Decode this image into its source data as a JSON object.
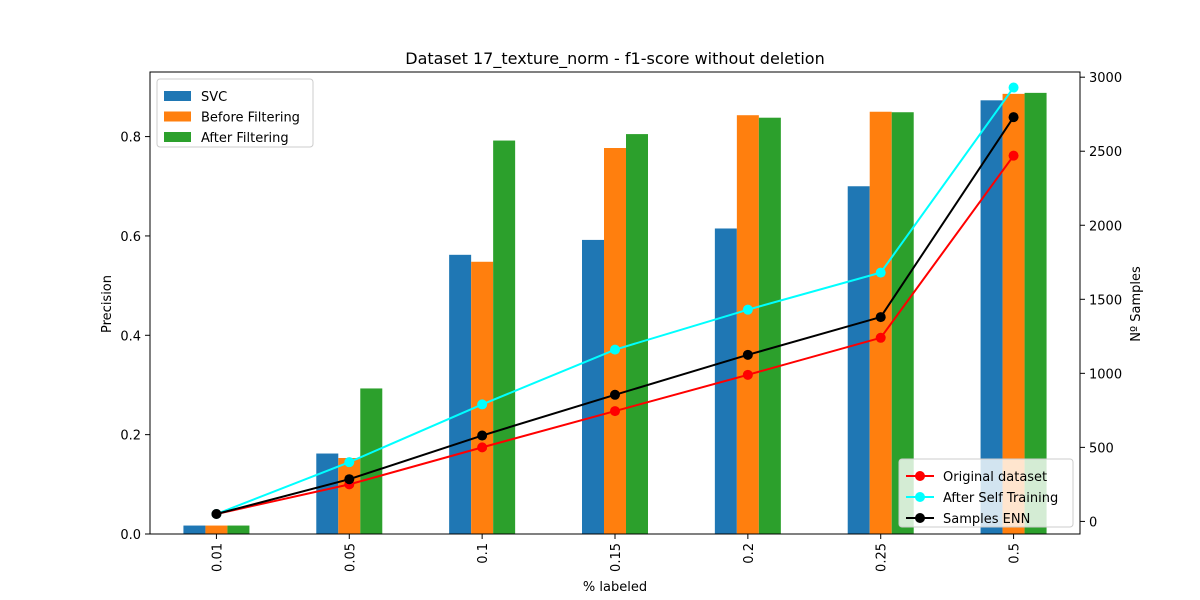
{
  "chart_data": {
    "type": "bar",
    "title": "Dataset 17_texture_norm - f1-score without deletion",
    "xlabel": "% labeled",
    "ylabel": "Precision",
    "y2label": "Nº Samples",
    "categories": [
      "0.01",
      "0.05",
      "0.1",
      "0.15",
      "0.2",
      "0.25",
      "0.5"
    ],
    "ylim": [
      0,
      0.93
    ],
    "y2lim": [
      -85,
      3035
    ],
    "yticks": [
      "0.0",
      "0.2",
      "0.4",
      "0.6",
      "0.8"
    ],
    "y2ticks": [
      "0",
      "500",
      "1000",
      "1500",
      "2000",
      "2500",
      "3000"
    ],
    "bar_series": [
      {
        "name": "SVC",
        "color": "#1f77b4",
        "values": [
          0.017,
          0.162,
          0.562,
          0.592,
          0.615,
          0.7,
          0.873
        ]
      },
      {
        "name": "Before Filtering",
        "color": "#ff7f0e",
        "values": [
          0.017,
          0.153,
          0.548,
          0.777,
          0.843,
          0.85,
          0.886
        ]
      },
      {
        "name": "After Filtering",
        "color": "#2ca02c",
        "values": [
          0.017,
          0.293,
          0.792,
          0.805,
          0.838,
          0.849,
          0.888
        ]
      }
    ],
    "line_series": [
      {
        "name": "Original dataset",
        "color": "#ff0000",
        "values": [
          50,
          250,
          500,
          745,
          990,
          1240,
          2470
        ]
      },
      {
        "name": "After Self Training",
        "color": "#00ffff",
        "values": [
          50,
          400,
          790,
          1160,
          1430,
          1680,
          2930
        ]
      },
      {
        "name": "Samples ENN",
        "color": "#000000",
        "values": [
          50,
          285,
          580,
          855,
          1125,
          1380,
          2730
        ]
      }
    ],
    "legend_bars_position": "upper-left",
    "legend_lines_position": "lower-right",
    "grid": false
  }
}
